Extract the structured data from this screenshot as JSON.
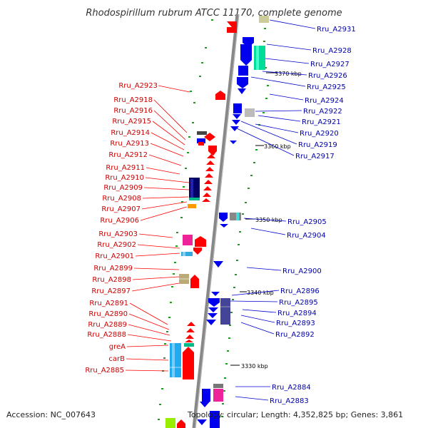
{
  "title": "Rhodospirillum rubrum ATCC 11170, complete genome",
  "accession": "Accession: NC_007643",
  "topology": "Topology: circular; Length: 4,352,825 bp; Genes: 3,861",
  "colors": {
    "forward": "#ff0000",
    "reverse": "#0000ee",
    "backbone": "#888888",
    "tick": "#229922"
  },
  "scale_marks": [
    "3370 kbp",
    "3360 kbp",
    "3350 kbp",
    "3340 kbp",
    "3330 kbp"
  ],
  "left_labels": [
    "Rru_A2923",
    "Rru_A2918",
    "Rru_A2916",
    "Rru_A2915",
    "Rru_A2914",
    "Rru_A2913",
    "Rru_A2912",
    "Rru_A2911",
    "Rru_A2910",
    "Rru_A2909",
    "Rru_A2908",
    "Rru_A2907",
    "Rru_A2906",
    "Rru_A2903",
    "Rru_A2902",
    "Rru_A2901",
    "Rru_A2899",
    "Rru_A2898",
    "Rru_A2897",
    "Rru_A2891",
    "Rru_A2890",
    "Rru_A2889",
    "Rru_A2888",
    "greA",
    "carB",
    "Rru_A2885"
  ],
  "right_labels": [
    "Rru_A2931",
    "Rru_A2928",
    "Rru_A2927",
    "Rru_A2926",
    "Rru_A2925",
    "Rru_A2924",
    "Rru_A2922",
    "Rru_A2921",
    "Rru_A2920",
    "Rru_A2919",
    "Rru_A2917",
    "Rru_A2905",
    "Rru_A2904",
    "Rru_A2900",
    "Rru_A2896",
    "Rru_A2895",
    "Rru_A2894",
    "Rru_A2893",
    "Rru_A2892",
    "Rru_A2884",
    "Rru_A2883"
  ]
}
